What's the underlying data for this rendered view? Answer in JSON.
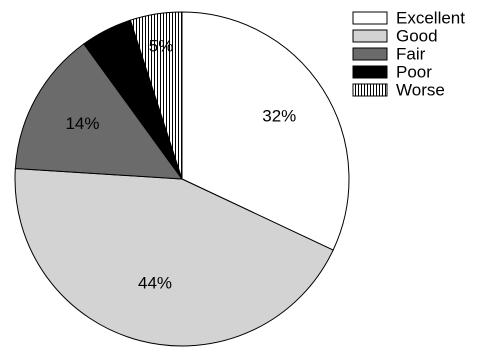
{
  "chart_data": {
    "type": "pie",
    "title": "",
    "start_angle_deg": 0,
    "direction": "clockwise",
    "legend_position": "top-right",
    "slices": [
      {
        "label": "Excellent",
        "value": 32,
        "display": "32%",
        "color": "#ffffff",
        "pattern": "none",
        "label_color": "#000000"
      },
      {
        "label": "Good",
        "value": 44,
        "display": "44%",
        "color": "#d3d3d3",
        "pattern": "none",
        "label_color": "#000000"
      },
      {
        "label": "Fair",
        "value": 14,
        "display": "14%",
        "color": "#6b6b6b",
        "pattern": "none",
        "label_color": "#ffffff"
      },
      {
        "label": "Poor",
        "value": 5,
        "display": "5%",
        "color": "#000000",
        "pattern": "none",
        "label_color": "#ffffff"
      },
      {
        "label": "Worse",
        "value": 5,
        "display": "5%",
        "color": "#ffffff",
        "pattern": "vertical-lines",
        "label_color": "#000000"
      }
    ]
  }
}
